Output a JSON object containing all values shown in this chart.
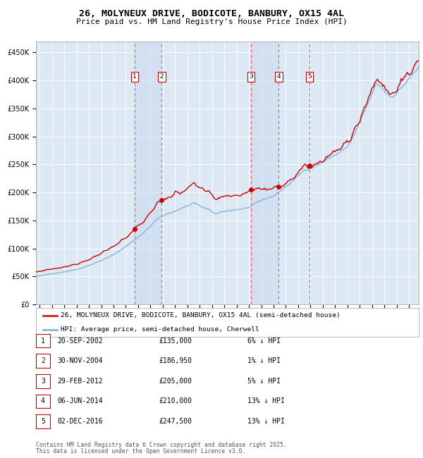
{
  "title": "26, MOLYNEUX DRIVE, BODICOTE, BANBURY, OX15 4AL",
  "subtitle": "Price paid vs. HM Land Registry's House Price Index (HPI)",
  "legend_line1": "26, MOLYNEUX DRIVE, BODICOTE, BANBURY, OX15 4AL (semi-detached house)",
  "legend_line2": "HPI: Average price, semi-detached house, Cherwell",
  "footer1": "Contains HM Land Registry data © Crown copyright and database right 2025.",
  "footer2": "This data is licensed under the Open Government Licence v3.0.",
  "transactions": [
    {
      "num": 1,
      "date": "20-SEP-2002",
      "price": 135000,
      "pct": "6%",
      "dir": "↓"
    },
    {
      "num": 2,
      "date": "30-NOV-2004",
      "price": 186950,
      "pct": "1%",
      "dir": "↓"
    },
    {
      "num": 3,
      "date": "29-FEB-2012",
      "price": 205000,
      "pct": "5%",
      "dir": "↓"
    },
    {
      "num": 4,
      "date": "06-JUN-2014",
      "price": 210000,
      "pct": "13%",
      "dir": "↓"
    },
    {
      "num": 5,
      "date": "02-DEC-2016",
      "price": 247500,
      "pct": "13%",
      "dir": "↓"
    }
  ],
  "transaction_dates_decimal": [
    2002.72,
    2004.92,
    2012.16,
    2014.43,
    2016.92
  ],
  "transaction_prices": [
    135000,
    186950,
    205000,
    210000,
    247500
  ],
  "hpi_color": "#7ab0d8",
  "price_color": "#cc0000",
  "dot_color": "#cc0000",
  "vline_color": "#ff5555",
  "shade_color": "#c8d8ee",
  "plot_bg": "#dce8f4",
  "ylim": [
    0,
    470000
  ],
  "yticks": [
    0,
    50000,
    100000,
    150000,
    200000,
    250000,
    300000,
    350000,
    400000,
    450000
  ],
  "xlim_start": 1994.7,
  "xlim_end": 2025.8
}
